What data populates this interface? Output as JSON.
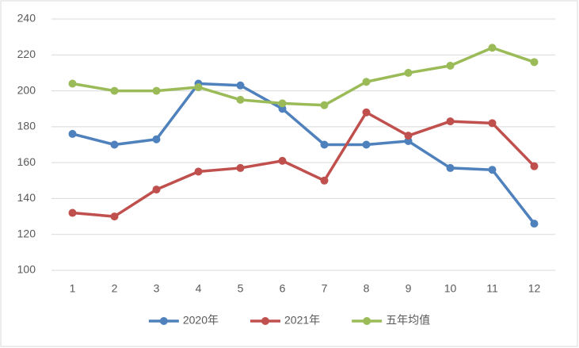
{
  "chart_data": {
    "type": "line",
    "categories": [
      "1",
      "2",
      "3",
      "4",
      "5",
      "6",
      "7",
      "8",
      "9",
      "10",
      "11",
      "12"
    ],
    "series": [
      {
        "name": "2020年",
        "color": "#4f81bd",
        "values": [
          176,
          170,
          173,
          204,
          203,
          190,
          170,
          170,
          172,
          157,
          156,
          126
        ]
      },
      {
        "name": "2021年",
        "color": "#c0504d",
        "values": [
          132,
          130,
          145,
          155,
          157,
          161,
          150,
          188,
          175,
          183,
          182,
          158
        ]
      },
      {
        "name": "五年均值",
        "color": "#9bbb59",
        "values": [
          204,
          200,
          200,
          202,
          195,
          193,
          192,
          205,
          210,
          214,
          224,
          216
        ]
      }
    ],
    "ylim": [
      100,
      240
    ],
    "yticks": [
      100,
      120,
      140,
      160,
      180,
      200,
      220,
      240
    ],
    "grid": true,
    "legend": "bottom"
  }
}
